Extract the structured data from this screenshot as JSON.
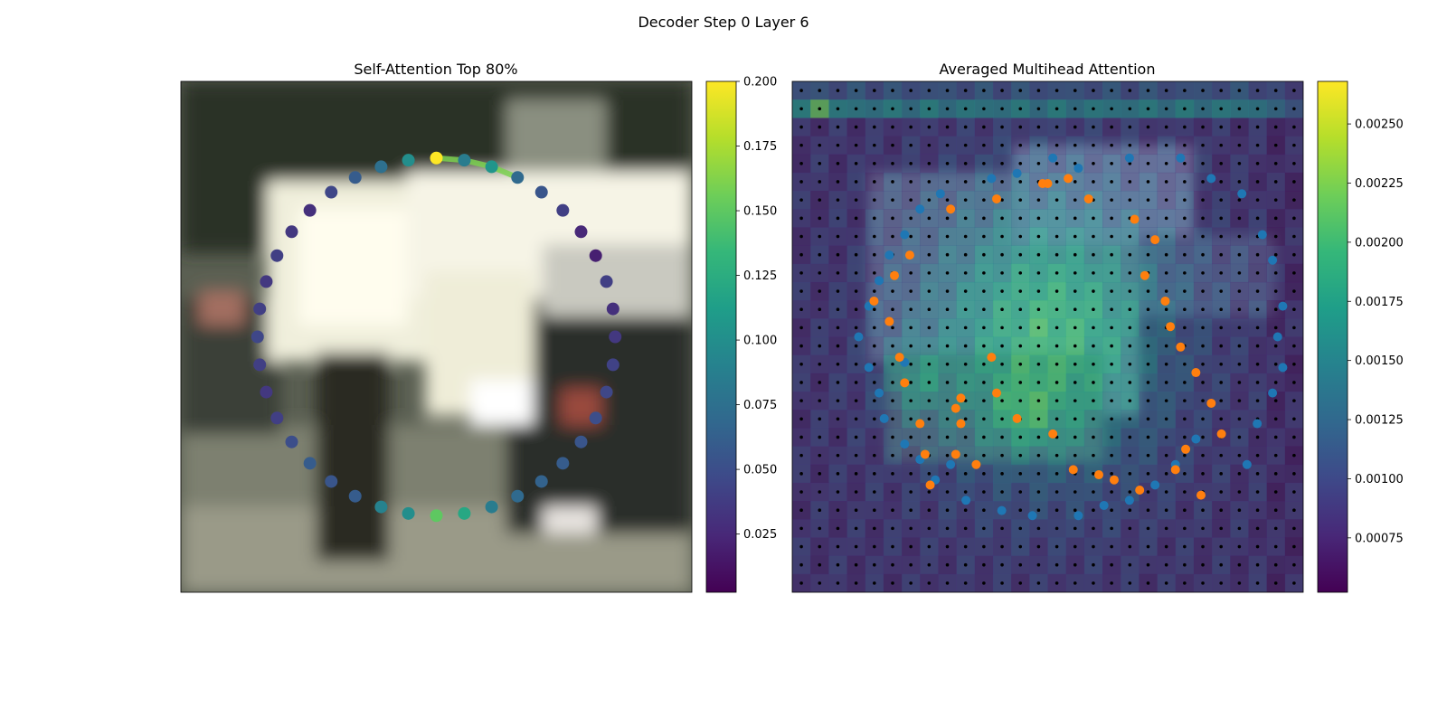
{
  "figure": {
    "suptitle": "Decoder Step 0 Layer 6"
  },
  "colors": {
    "viridis": [
      "#440154",
      "#482878",
      "#3e4989",
      "#31688e",
      "#26828e",
      "#1f9e89",
      "#35b779",
      "#6ece58",
      "#b5de2b",
      "#fde725"
    ],
    "blue_points": "#1f77b4",
    "orange_points": "#ff7f0e",
    "grid_dots": "#000000"
  },
  "chart_data": [
    {
      "type": "scatter",
      "title": "Self-Attention Top 80%",
      "background": "blurred photo of a white vehicle on a street",
      "colorbar": {
        "range": [
          0.0025,
          0.2
        ],
        "ticks": [
          "0.025",
          "0.050",
          "0.075",
          "0.100",
          "0.125",
          "0.150",
          "0.175",
          "0.200"
        ],
        "tick_values": [
          0.025,
          0.05,
          0.075,
          0.1,
          0.125,
          0.15,
          0.175,
          0.2
        ]
      },
      "ring": {
        "center": [
          0.5,
          0.5
        ],
        "radius": 0.35,
        "count": 40,
        "start_angle_deg": -90,
        "values": [
          0.2,
          0.085,
          0.105,
          0.07,
          0.055,
          0.04,
          0.025,
          0.02,
          0.04,
          0.03,
          0.035,
          0.042,
          0.045,
          0.05,
          0.055,
          0.06,
          0.065,
          0.07,
          0.085,
          0.12,
          0.15,
          0.1,
          0.09,
          0.06,
          0.055,
          0.06,
          0.05,
          0.04,
          0.035,
          0.04,
          0.045,
          0.04,
          0.035,
          0.04,
          0.035,
          0.03,
          0.045,
          0.06,
          0.075,
          0.1
        ],
        "link": {
          "from": 0,
          "to": 3,
          "value": 0.16
        }
      }
    },
    {
      "type": "heatmap",
      "title": "Averaged Multihead Attention",
      "grid": [
        28,
        28
      ],
      "colorbar": {
        "range": [
          0.00052,
          0.00268
        ],
        "ticks": [
          "0.00075",
          "0.00100",
          "0.00125",
          "0.00150",
          "0.00175",
          "0.00200",
          "0.00225",
          "0.00250"
        ],
        "tick_values": [
          0.00075,
          0.001,
          0.00125,
          0.0015,
          0.00175,
          0.002,
          0.00225,
          0.0025
        ]
      },
      "blue_points": [
        [
          0.66,
          0.15
        ],
        [
          0.76,
          0.15
        ],
        [
          0.51,
          0.15
        ],
        [
          0.56,
          0.17
        ],
        [
          0.44,
          0.18
        ],
        [
          0.39,
          0.19
        ],
        [
          0.82,
          0.19
        ],
        [
          0.88,
          0.22
        ],
        [
          0.29,
          0.22
        ],
        [
          0.25,
          0.25
        ],
        [
          0.22,
          0.3
        ],
        [
          0.92,
          0.3
        ],
        [
          0.19,
          0.34
        ],
        [
          0.94,
          0.35
        ],
        [
          0.17,
          0.39
        ],
        [
          0.96,
          0.44
        ],
        [
          0.15,
          0.44
        ],
        [
          0.95,
          0.5
        ],
        [
          0.13,
          0.5
        ],
        [
          0.15,
          0.56
        ],
        [
          0.96,
          0.56
        ],
        [
          0.17,
          0.61
        ],
        [
          0.94,
          0.61
        ],
        [
          0.18,
          0.66
        ],
        [
          0.91,
          0.67
        ],
        [
          0.79,
          0.7
        ],
        [
          0.22,
          0.71
        ],
        [
          0.25,
          0.74
        ],
        [
          0.89,
          0.75
        ],
        [
          0.75,
          0.75
        ],
        [
          0.28,
          0.78
        ],
        [
          0.71,
          0.79
        ],
        [
          0.34,
          0.82
        ],
        [
          0.66,
          0.82
        ],
        [
          0.41,
          0.84
        ],
        [
          0.47,
          0.85
        ],
        [
          0.56,
          0.85
        ],
        [
          0.61,
          0.83
        ],
        [
          0.31,
          0.75
        ],
        [
          0.22,
          0.55
        ]
      ],
      "orange_points": [
        [
          0.5,
          0.2
        ],
        [
          0.49,
          0.2
        ],
        [
          0.54,
          0.19
        ],
        [
          0.4,
          0.23
        ],
        [
          0.31,
          0.25
        ],
        [
          0.58,
          0.23
        ],
        [
          0.67,
          0.27
        ],
        [
          0.71,
          0.31
        ],
        [
          0.23,
          0.34
        ],
        [
          0.2,
          0.38
        ],
        [
          0.69,
          0.38
        ],
        [
          0.16,
          0.43
        ],
        [
          0.73,
          0.43
        ],
        [
          0.19,
          0.47
        ],
        [
          0.74,
          0.48
        ],
        [
          0.76,
          0.52
        ],
        [
          0.21,
          0.54
        ],
        [
          0.39,
          0.54
        ],
        [
          0.79,
          0.57
        ],
        [
          0.22,
          0.59
        ],
        [
          0.33,
          0.62
        ],
        [
          0.4,
          0.61
        ],
        [
          0.32,
          0.64
        ],
        [
          0.82,
          0.63
        ],
        [
          0.44,
          0.66
        ],
        [
          0.25,
          0.67
        ],
        [
          0.33,
          0.67
        ],
        [
          0.51,
          0.69
        ],
        [
          0.84,
          0.69
        ],
        [
          0.26,
          0.73
        ],
        [
          0.32,
          0.73
        ],
        [
          0.77,
          0.72
        ],
        [
          0.55,
          0.76
        ],
        [
          0.6,
          0.77
        ],
        [
          0.75,
          0.76
        ],
        [
          0.27,
          0.79
        ],
        [
          0.8,
          0.81
        ],
        [
          0.36,
          0.75
        ],
        [
          0.68,
          0.8
        ],
        [
          0.63,
          0.78
        ]
      ]
    }
  ]
}
